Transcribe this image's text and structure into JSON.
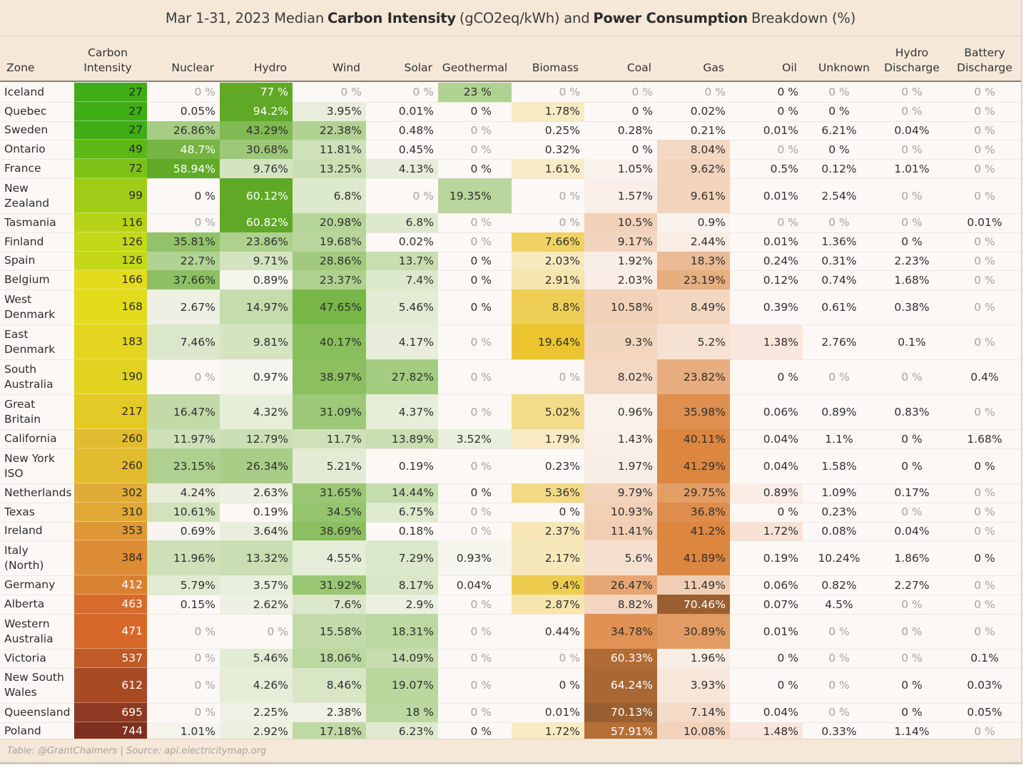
{
  "title": {
    "prefix": "Mar 1-31, 2023 Median",
    "bold1": "Carbon Intensity",
    "mid": "(gCO2eq/kWh) and",
    "bold2": "Power Consumption",
    "suffix": "Breakdown (%)"
  },
  "footer": "Table: @GrantChalmers | Source: api.electricitymap.org",
  "chart_data": {
    "type": "table",
    "columns": [
      "Zone",
      "Carbon\nIntensity",
      "Nuclear",
      "Hydro",
      "Wind",
      "Solar",
      "Geothermal",
      "Biomass",
      "Coal",
      "Gas",
      "Oil",
      "Unknown",
      "Hydro\nDischarge",
      "Battery\nDischarge"
    ],
    "rows": [
      {
        "zone": "Iceland",
        "ci": 27,
        "v": [
          "0 %",
          "77 %",
          "0 %",
          "0 %",
          "23 %",
          "0 %",
          "0 %",
          "0 %",
          "0 %",
          "0 %",
          "0 %",
          "0 %"
        ],
        "dim": [
          1,
          0,
          1,
          1,
          0,
          1,
          1,
          1,
          0,
          1,
          1,
          1
        ]
      },
      {
        "zone": "Quebec",
        "ci": 27,
        "v": [
          "0.05%",
          "94.2%",
          "3.95%",
          "0.01%",
          "0 %",
          "1.78%",
          "0 %",
          "0.02%",
          "0 %",
          "0 %",
          "0 %",
          "0 %"
        ],
        "dim": [
          0,
          0,
          0,
          0,
          0,
          0,
          0,
          0,
          0,
          0,
          1,
          1
        ]
      },
      {
        "zone": "Sweden",
        "ci": 27,
        "v": [
          "26.86%",
          "43.29%",
          "22.38%",
          "0.48%",
          "0 %",
          "0.25%",
          "0.28%",
          "0.21%",
          "0.01%",
          "6.21%",
          "0.04%",
          "0 %"
        ],
        "dim": [
          0,
          0,
          0,
          0,
          1,
          0,
          0,
          0,
          0,
          0,
          0,
          1
        ]
      },
      {
        "zone": "Ontario",
        "ci": 49,
        "v": [
          "48.7%",
          "30.68%",
          "11.81%",
          "0.45%",
          "0 %",
          "0.32%",
          "0 %",
          "8.04%",
          "0 %",
          "0 %",
          "0 %",
          "0 %"
        ],
        "dim": [
          0,
          0,
          0,
          0,
          1,
          0,
          0,
          0,
          1,
          0,
          1,
          1
        ]
      },
      {
        "zone": "France",
        "ci": 72,
        "v": [
          "58.94%",
          "9.76%",
          "13.25%",
          "4.13%",
          "0 %",
          "1.61%",
          "1.05%",
          "9.62%",
          "0.5%",
          "0.12%",
          "1.01%",
          "0 %"
        ],
        "dim": [
          0,
          0,
          0,
          0,
          0,
          0,
          0,
          0,
          0,
          0,
          0,
          1
        ]
      },
      {
        "zone": "New\nZealand",
        "ci": 99,
        "v": [
          "0 %",
          "60.12%",
          "6.8%",
          "0 %",
          "19.35%",
          "0 %",
          "1.57%",
          "9.61%",
          "0.01%",
          "2.54%",
          "0 %",
          "0 %"
        ],
        "dim": [
          0,
          0,
          0,
          1,
          0,
          1,
          0,
          0,
          0,
          0,
          1,
          1
        ]
      },
      {
        "zone": "Tasmania",
        "ci": 116,
        "v": [
          "0 %",
          "60.82%",
          "20.98%",
          "6.8%",
          "0 %",
          "0 %",
          "10.5%",
          "0.9%",
          "0 %",
          "0 %",
          "0 %",
          "0.01%"
        ],
        "dim": [
          1,
          0,
          0,
          0,
          1,
          1,
          0,
          0,
          1,
          1,
          1,
          0
        ]
      },
      {
        "zone": "Finland",
        "ci": 126,
        "v": [
          "35.81%",
          "23.86%",
          "19.68%",
          "0.02%",
          "0 %",
          "7.66%",
          "9.17%",
          "2.44%",
          "0.01%",
          "1.36%",
          "0 %",
          "0 %"
        ],
        "dim": [
          0,
          0,
          0,
          0,
          1,
          0,
          0,
          0,
          0,
          0,
          0,
          1
        ]
      },
      {
        "zone": "Spain",
        "ci": 126,
        "v": [
          "22.7%",
          "9.71%",
          "28.86%",
          "13.7%",
          "0 %",
          "2.03%",
          "1.92%",
          "18.3%",
          "0.24%",
          "0.31%",
          "2.23%",
          "0 %"
        ],
        "dim": [
          0,
          0,
          0,
          0,
          0,
          0,
          0,
          0,
          0,
          0,
          0,
          1
        ]
      },
      {
        "zone": "Belgium",
        "ci": 166,
        "v": [
          "37.66%",
          "0.89%",
          "23.37%",
          "7.4%",
          "0 %",
          "2.91%",
          "2.03%",
          "23.19%",
          "0.12%",
          "0.74%",
          "1.68%",
          "0 %"
        ],
        "dim": [
          0,
          0,
          0,
          0,
          0,
          0,
          0,
          0,
          0,
          0,
          0,
          1
        ]
      },
      {
        "zone": "West\nDenmark",
        "ci": 168,
        "v": [
          "2.67%",
          "14.97%",
          "47.65%",
          "5.46%",
          "0 %",
          "8.8%",
          "10.58%",
          "8.49%",
          "0.39%",
          "0.61%",
          "0.38%",
          "0 %"
        ],
        "dim": [
          0,
          0,
          0,
          0,
          0,
          0,
          0,
          0,
          0,
          0,
          0,
          1
        ]
      },
      {
        "zone": "East\nDenmark",
        "ci": 183,
        "v": [
          "7.46%",
          "9.81%",
          "40.17%",
          "4.17%",
          "0 %",
          "19.64%",
          "9.3%",
          "5.2%",
          "1.38%",
          "2.76%",
          "0.1%",
          "0 %"
        ],
        "dim": [
          0,
          0,
          0,
          0,
          1,
          0,
          0,
          0,
          0,
          0,
          0,
          1
        ]
      },
      {
        "zone": "South\nAustralia",
        "ci": 190,
        "v": [
          "0 %",
          "0.97%",
          "38.97%",
          "27.82%",
          "0 %",
          "0 %",
          "8.02%",
          "23.82%",
          "0 %",
          "0 %",
          "0 %",
          "0.4%"
        ],
        "dim": [
          1,
          0,
          0,
          0,
          1,
          1,
          0,
          0,
          0,
          1,
          1,
          0
        ]
      },
      {
        "zone": "Great\nBritain",
        "ci": 217,
        "v": [
          "16.47%",
          "4.32%",
          "31.09%",
          "4.37%",
          "0 %",
          "5.02%",
          "0.96%",
          "35.98%",
          "0.06%",
          "0.89%",
          "0.83%",
          "0 %"
        ],
        "dim": [
          0,
          0,
          0,
          0,
          1,
          0,
          0,
          0,
          0,
          0,
          0,
          1
        ]
      },
      {
        "zone": "California",
        "ci": 260,
        "v": [
          "11.97%",
          "12.79%",
          "11.7%",
          "13.89%",
          "3.52%",
          "1.79%",
          "1.43%",
          "40.11%",
          "0.04%",
          "1.1%",
          "0 %",
          "1.68%"
        ],
        "dim": [
          0,
          0,
          0,
          0,
          0,
          0,
          0,
          0,
          0,
          0,
          0,
          0
        ]
      },
      {
        "zone": "New York\nISO",
        "ci": 260,
        "v": [
          "23.15%",
          "26.34%",
          "5.21%",
          "0.19%",
          "0 %",
          "0.23%",
          "1.97%",
          "41.29%",
          "0.04%",
          "1.58%",
          "0 %",
          "0 %"
        ],
        "dim": [
          0,
          0,
          0,
          0,
          1,
          0,
          0,
          0,
          0,
          0,
          0,
          0
        ]
      },
      {
        "zone": "Netherlands",
        "ci": 302,
        "v": [
          "4.24%",
          "2.63%",
          "31.65%",
          "14.44%",
          "0 %",
          "5.36%",
          "9.79%",
          "29.75%",
          "0.89%",
          "1.09%",
          "0.17%",
          "0 %"
        ],
        "dim": [
          0,
          0,
          0,
          0,
          0,
          0,
          0,
          0,
          0,
          0,
          0,
          1
        ]
      },
      {
        "zone": "Texas",
        "ci": 310,
        "v": [
          "10.61%",
          "0.19%",
          "34.5%",
          "6.75%",
          "0 %",
          "0 %",
          "10.93%",
          "36.8%",
          "0 %",
          "0.23%",
          "0 %",
          "0 %"
        ],
        "dim": [
          0,
          0,
          0,
          0,
          1,
          0,
          0,
          0,
          0,
          0,
          1,
          1
        ]
      },
      {
        "zone": "Ireland",
        "ci": 353,
        "v": [
          "0.69%",
          "3.64%",
          "38.69%",
          "0.18%",
          "0 %",
          "2.37%",
          "11.41%",
          "41.2%",
          "1.72%",
          "0.08%",
          "0.04%",
          "0 %"
        ],
        "dim": [
          0,
          0,
          0,
          0,
          1,
          0,
          0,
          0,
          0,
          0,
          0,
          1
        ]
      },
      {
        "zone": "Italy\n(North)",
        "ci": 384,
        "v": [
          "11.96%",
          "13.32%",
          "4.55%",
          "7.29%",
          "0.93%",
          "2.17%",
          "5.6%",
          "41.89%",
          "0.19%",
          "10.24%",
          "1.86%",
          "0 %"
        ],
        "dim": [
          0,
          0,
          0,
          0,
          0,
          0,
          0,
          0,
          0,
          0,
          0,
          0
        ]
      },
      {
        "zone": "Germany",
        "ci": 412,
        "v": [
          "5.79%",
          "3.57%",
          "31.92%",
          "8.17%",
          "0.04%",
          "9.4%",
          "26.47%",
          "11.49%",
          "0.06%",
          "0.82%",
          "2.27%",
          "0 %"
        ],
        "dim": [
          0,
          0,
          0,
          0,
          0,
          0,
          0,
          0,
          0,
          0,
          0,
          1
        ]
      },
      {
        "zone": "Alberta",
        "ci": 463,
        "v": [
          "0.15%",
          "2.62%",
          "7.6%",
          "2.9%",
          "0 %",
          "2.87%",
          "8.82%",
          "70.46%",
          "0.07%",
          "4.5%",
          "0 %",
          "0 %"
        ],
        "dim": [
          0,
          0,
          0,
          0,
          1,
          0,
          0,
          0,
          0,
          0,
          1,
          1
        ]
      },
      {
        "zone": "Western\nAustralia",
        "ci": 471,
        "v": [
          "0 %",
          "0 %",
          "15.58%",
          "18.31%",
          "0 %",
          "0.44%",
          "34.78%",
          "30.89%",
          "0.01%",
          "0 %",
          "0 %",
          "0 %"
        ],
        "dim": [
          1,
          1,
          0,
          0,
          1,
          0,
          0,
          0,
          0,
          1,
          1,
          1
        ]
      },
      {
        "zone": "Victoria",
        "ci": 537,
        "v": [
          "0 %",
          "5.46%",
          "18.06%",
          "14.09%",
          "0 %",
          "0 %",
          "60.33%",
          "1.96%",
          "0 %",
          "0 %",
          "0 %",
          "0.1%"
        ],
        "dim": [
          1,
          0,
          0,
          0,
          1,
          1,
          0,
          0,
          0,
          1,
          1,
          0
        ]
      },
      {
        "zone": "New South\nWales",
        "ci": 612,
        "v": [
          "0 %",
          "4.26%",
          "8.46%",
          "19.07%",
          "0 %",
          "0 %",
          "64.24%",
          "3.93%",
          "0 %",
          "0 %",
          "0 %",
          "0.03%"
        ],
        "dim": [
          1,
          0,
          0,
          0,
          1,
          0,
          0,
          0,
          0,
          1,
          0,
          0
        ]
      },
      {
        "zone": "Queensland",
        "ci": 695,
        "v": [
          "0 %",
          "2.25%",
          "2.38%",
          "18 %",
          "0 %",
          "0.01%",
          "70.13%",
          "7.14%",
          "0.04%",
          "0 %",
          "0 %",
          "0.05%"
        ],
        "dim": [
          1,
          0,
          0,
          0,
          1,
          0,
          0,
          0,
          0,
          1,
          0,
          0
        ]
      },
      {
        "zone": "Poland",
        "ci": 744,
        "v": [
          "1.01%",
          "2.92%",
          "17.18%",
          "6.23%",
          "0 %",
          "1.72%",
          "57.91%",
          "10.08%",
          "1.48%",
          "0.33%",
          "1.14%",
          "0 %"
        ],
        "dim": [
          0,
          0,
          0,
          0,
          0,
          0,
          0,
          0,
          0,
          0,
          0,
          1
        ]
      }
    ]
  },
  "colors": {
    "ci_scale": [
      "#3fae14",
      "#e4e11a",
      "#e0a23a",
      "#d6682a",
      "#7e2f1f"
    ],
    "green": "#57a51b",
    "yellow": "#ebc42e",
    "orange": "#dc8640",
    "brown": "#9a5f30",
    "header_bg": "#f5e8d8"
  }
}
